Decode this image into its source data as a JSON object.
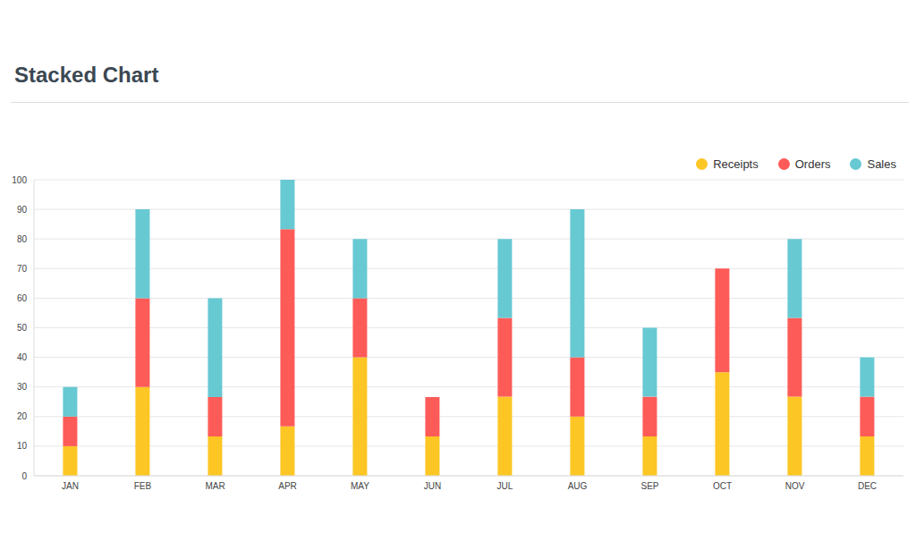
{
  "chart_data": {
    "type": "bar",
    "title": "Stacked Chart",
    "categories": [
      "JAN",
      "FEB",
      "MAR",
      "APR",
      "MAY",
      "JUN",
      "JUL",
      "AUG",
      "SEP",
      "OCT",
      "NOV",
      "DEC"
    ],
    "series": [
      {
        "name": "Receipts",
        "color": "#fcc624",
        "values": [
          10,
          30,
          13.3,
          16.7,
          40,
          13.3,
          26.7,
          20,
          13.3,
          35,
          26.7,
          13.3
        ]
      },
      {
        "name": "Orders",
        "color": "#fd5b58",
        "values": [
          10,
          30,
          13.3,
          66.6,
          20,
          13.3,
          26.6,
          20,
          13.4,
          35,
          26.6,
          13.4
        ]
      },
      {
        "name": "Sales",
        "color": "#67c9d2",
        "values": [
          10,
          30,
          33.4,
          16.7,
          20,
          0,
          26.7,
          50,
          23.3,
          0,
          26.7,
          13.3
        ]
      }
    ],
    "ylim": [
      0,
      100
    ],
    "yticks": [
      0,
      10,
      20,
      30,
      40,
      50,
      60,
      70,
      80,
      90,
      100
    ],
    "grid": true,
    "stacked": true,
    "legend": "upper right"
  }
}
